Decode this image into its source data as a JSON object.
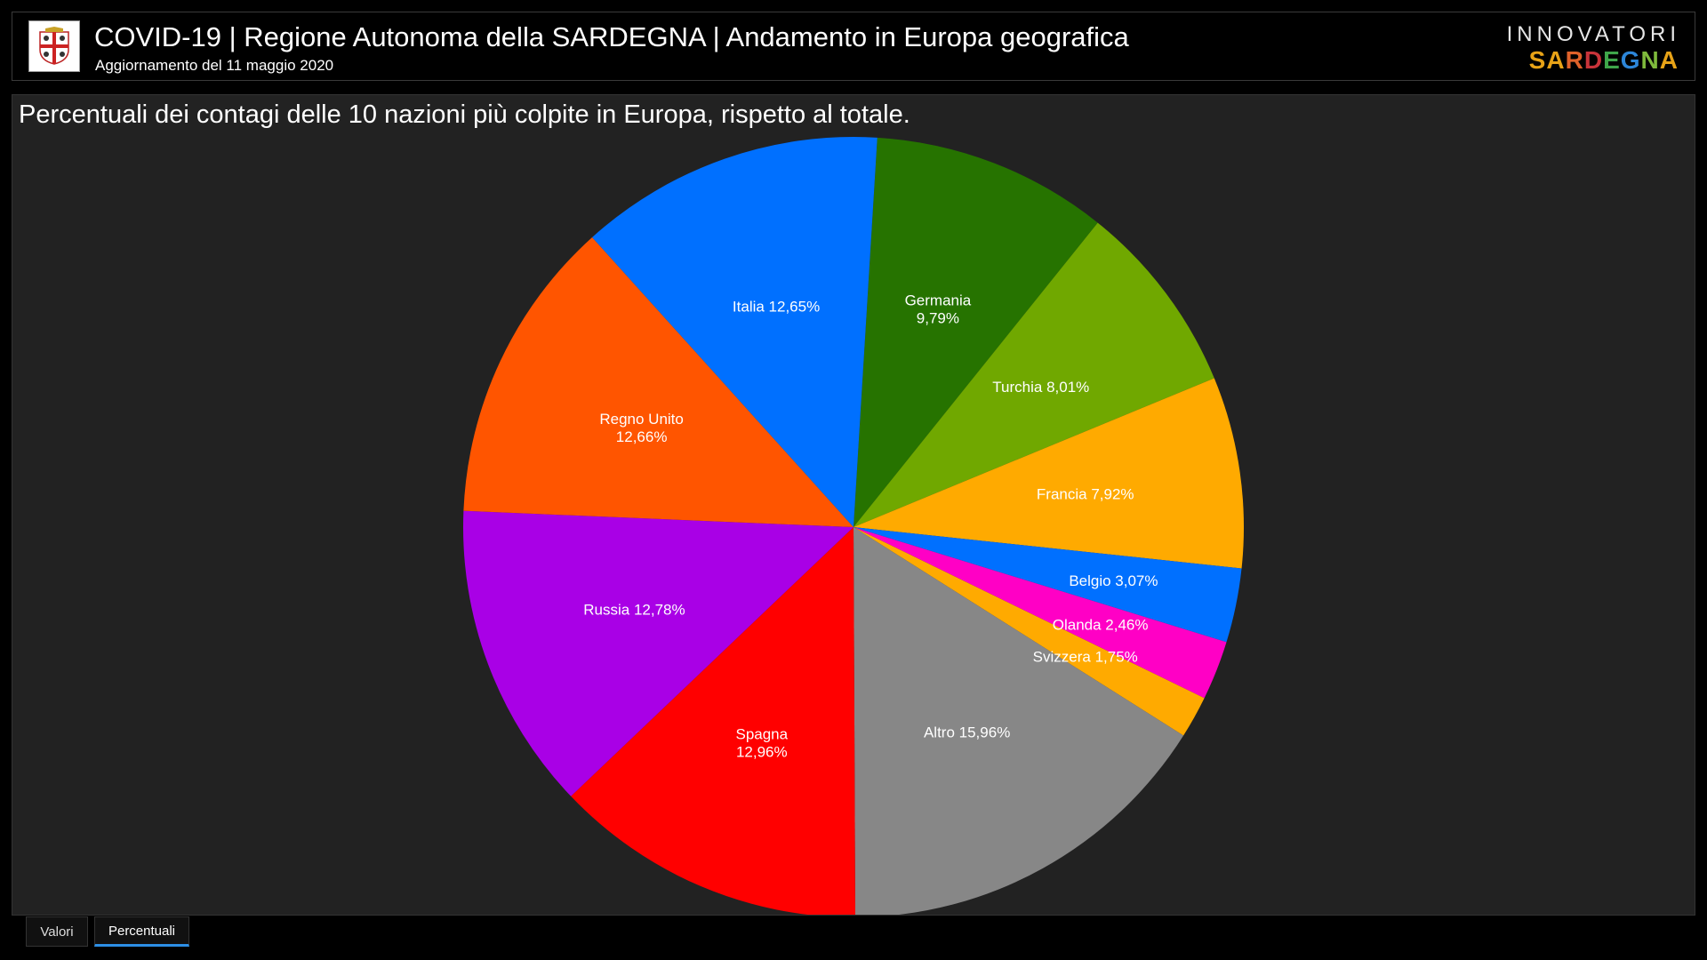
{
  "header": {
    "title": "COVID-19 | Regione Autonoma della SARDEGNA | Andamento in Europa geografica",
    "subtitle": "Aggiornamento del 11 maggio 2020",
    "brand_top": "INNOVATORI",
    "brand_bottom_letters": [
      "S",
      "A",
      "R",
      "D",
      "E",
      "G",
      "N",
      "A"
    ],
    "brand_bottom_colors": [
      "#e8a317",
      "#e8a317",
      "#e0622a",
      "#c8343a",
      "#3fa64a",
      "#2d86d9",
      "#7fba3c",
      "#e8a317"
    ]
  },
  "tabs": [
    {
      "label": "Valori",
      "active": false
    },
    {
      "label": "Percentuali",
      "active": true
    }
  ],
  "chart_data": {
    "type": "pie",
    "title": "Percentuali dei contagi delle 10 nazioni più colpite in Europa, rispetto al totale.",
    "slices": [
      {
        "name": "Germania",
        "value": 9.79,
        "label_lines": [
          "Germania",
          "9,79%"
        ],
        "color": "#267300"
      },
      {
        "name": "Turchia",
        "value": 8.01,
        "label_lines": [
          "Turchia 8,01%"
        ],
        "color": "#70a800"
      },
      {
        "name": "Francia",
        "value": 7.92,
        "label_lines": [
          "Francia 7,92%"
        ],
        "color": "#ffaa00"
      },
      {
        "name": "Belgio",
        "value": 3.07,
        "label_lines": [
          "Belgio 3,07%"
        ],
        "color": "#0070ff"
      },
      {
        "name": "Olanda",
        "value": 2.46,
        "label_lines": [
          "Olanda 2,46%"
        ],
        "color": "#ff00c5"
      },
      {
        "name": "Svizzera",
        "value": 1.75,
        "label_lines": [
          "Svizzera 1,75%"
        ],
        "color": "#ffaa00"
      },
      {
        "name": "Altro",
        "value": 15.96,
        "label_lines": [
          "Altro 15,96%"
        ],
        "color": "#878787"
      },
      {
        "name": "Spagna",
        "value": 12.96,
        "label_lines": [
          "Spagna",
          "12,96%"
        ],
        "color": "#ff0000"
      },
      {
        "name": "Russia",
        "value": 12.78,
        "label_lines": [
          "Russia 12,78%"
        ],
        "color": "#a900e6"
      },
      {
        "name": "Regno Unito",
        "value": 12.66,
        "label_lines": [
          "Regno Unito",
          "12,66%"
        ],
        "color": "#ff5500"
      },
      {
        "name": "Italia",
        "value": 12.65,
        "label_lines": [
          "Italia 12,65%"
        ],
        "color": "#0070ff"
      }
    ]
  }
}
